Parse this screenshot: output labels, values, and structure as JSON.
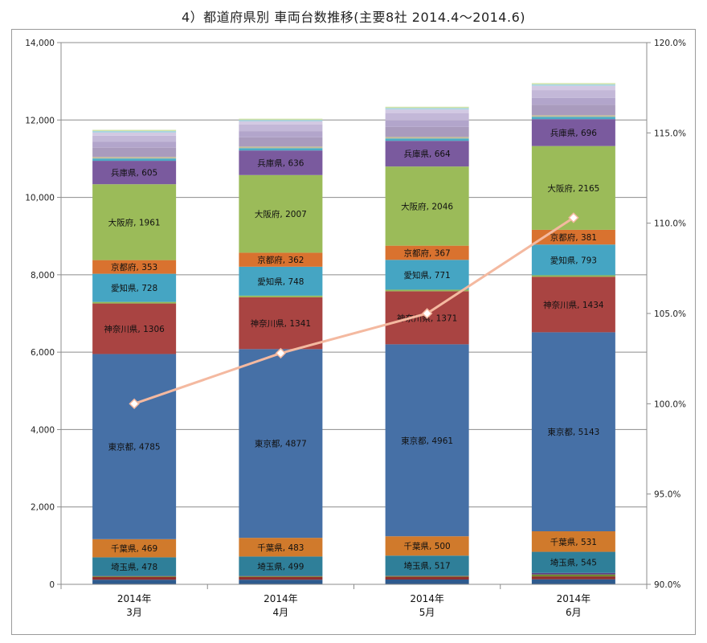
{
  "chart_data": {
    "type": "bar",
    "stacked": true,
    "title": "4）都道府県別 車両台数推移(主要8社 2014.4～2014.6)",
    "categories": [
      [
        "2014年",
        "3月"
      ],
      [
        "2014年",
        "4月"
      ],
      [
        "2014年",
        "5月"
      ],
      [
        "2014年",
        "6月"
      ]
    ],
    "ylim": [
      0,
      14000
    ],
    "y_ticks": [
      "0",
      "2,000",
      "4,000",
      "6,000",
      "8,000",
      "10,000",
      "12,000",
      "14,000"
    ],
    "y2lim": [
      90,
      120
    ],
    "y2_ticks": [
      "90.0%",
      "95.0%",
      "100.0%",
      "105.0%",
      "110.0%",
      "115.0%",
      "120.0%"
    ],
    "gridlines": true,
    "legend": "none",
    "series": [
      {
        "name": "",
        "color": "#2e5a8e",
        "values": [
          120,
          120,
          125,
          130
        ],
        "labeled": false
      },
      {
        "name": "",
        "color": "#8e2e2c",
        "values": [
          70,
          70,
          70,
          75
        ],
        "labeled": false
      },
      {
        "name": "",
        "color": "#6f8a2e",
        "values": [
          20,
          20,
          20,
          50
        ],
        "labeled": false
      },
      {
        "name": "",
        "color": "#5e3f82",
        "values": [
          10,
          10,
          10,
          40
        ],
        "labeled": false
      },
      {
        "name": "埼玉県",
        "color": "#2f7f99",
        "values": [
          478,
          499,
          517,
          545
        ],
        "labeled": true
      },
      {
        "name": "千葉県",
        "color": "#d07a2c",
        "values": [
          469,
          483,
          500,
          531
        ],
        "labeled": true
      },
      {
        "name": "東京都",
        "color": "#4670a6",
        "values": [
          4785,
          4877,
          4961,
          5143
        ],
        "labeled": true
      },
      {
        "name": "神奈川県",
        "color": "#a94442",
        "values": [
          1306,
          1341,
          1371,
          1434
        ],
        "labeled": true
      },
      {
        "name": "",
        "color": "#94b856",
        "values": [
          40,
          40,
          40,
          40
        ],
        "labeled": false
      },
      {
        "name": "愛知県",
        "color": "#45a5c3",
        "values": [
          728,
          748,
          771,
          793
        ],
        "labeled": true
      },
      {
        "name": "京都府",
        "color": "#d9722f",
        "values": [
          353,
          362,
          367,
          381
        ],
        "labeled": true
      },
      {
        "name": "大阪府",
        "color": "#9bbb59",
        "values": [
          1961,
          2007,
          2046,
          2165
        ],
        "labeled": true
      },
      {
        "name": "兵庫県",
        "color": "#7a5a9e",
        "values": [
          605,
          636,
          664,
          696
        ],
        "labeled": true
      },
      {
        "name": "",
        "color": "#4bacc6",
        "values": [
          60,
          60,
          60,
          60
        ],
        "labeled": false
      },
      {
        "name": "",
        "color": "#c4bd97",
        "values": [
          40,
          40,
          40,
          40
        ],
        "labeled": false
      },
      {
        "name": "",
        "color": "#a99bbd",
        "values": [
          240,
          240,
          260,
          270
        ],
        "labeled": false
      },
      {
        "name": "",
        "color": "#b2a5cb",
        "values": [
          150,
          160,
          170,
          180
        ],
        "labeled": false
      },
      {
        "name": "",
        "color": "#c3b8d8",
        "values": [
          160,
          170,
          180,
          200
        ],
        "labeled": false
      },
      {
        "name": "",
        "color": "#d2c9e3",
        "values": [
          80,
          80,
          100,
          110
        ],
        "labeled": false
      },
      {
        "name": "",
        "color": "#a8d4e0",
        "values": [
          40,
          40,
          40,
          40
        ],
        "labeled": false
      },
      {
        "name": "",
        "color": "#cfe3a6",
        "values": [
          30,
          30,
          30,
          30
        ],
        "labeled": false
      }
    ],
    "line_series": {
      "name": "",
      "axis": "right",
      "color": "#f4b9a0",
      "values": [
        100.0,
        102.8,
        105.0,
        110.3
      ]
    }
  }
}
